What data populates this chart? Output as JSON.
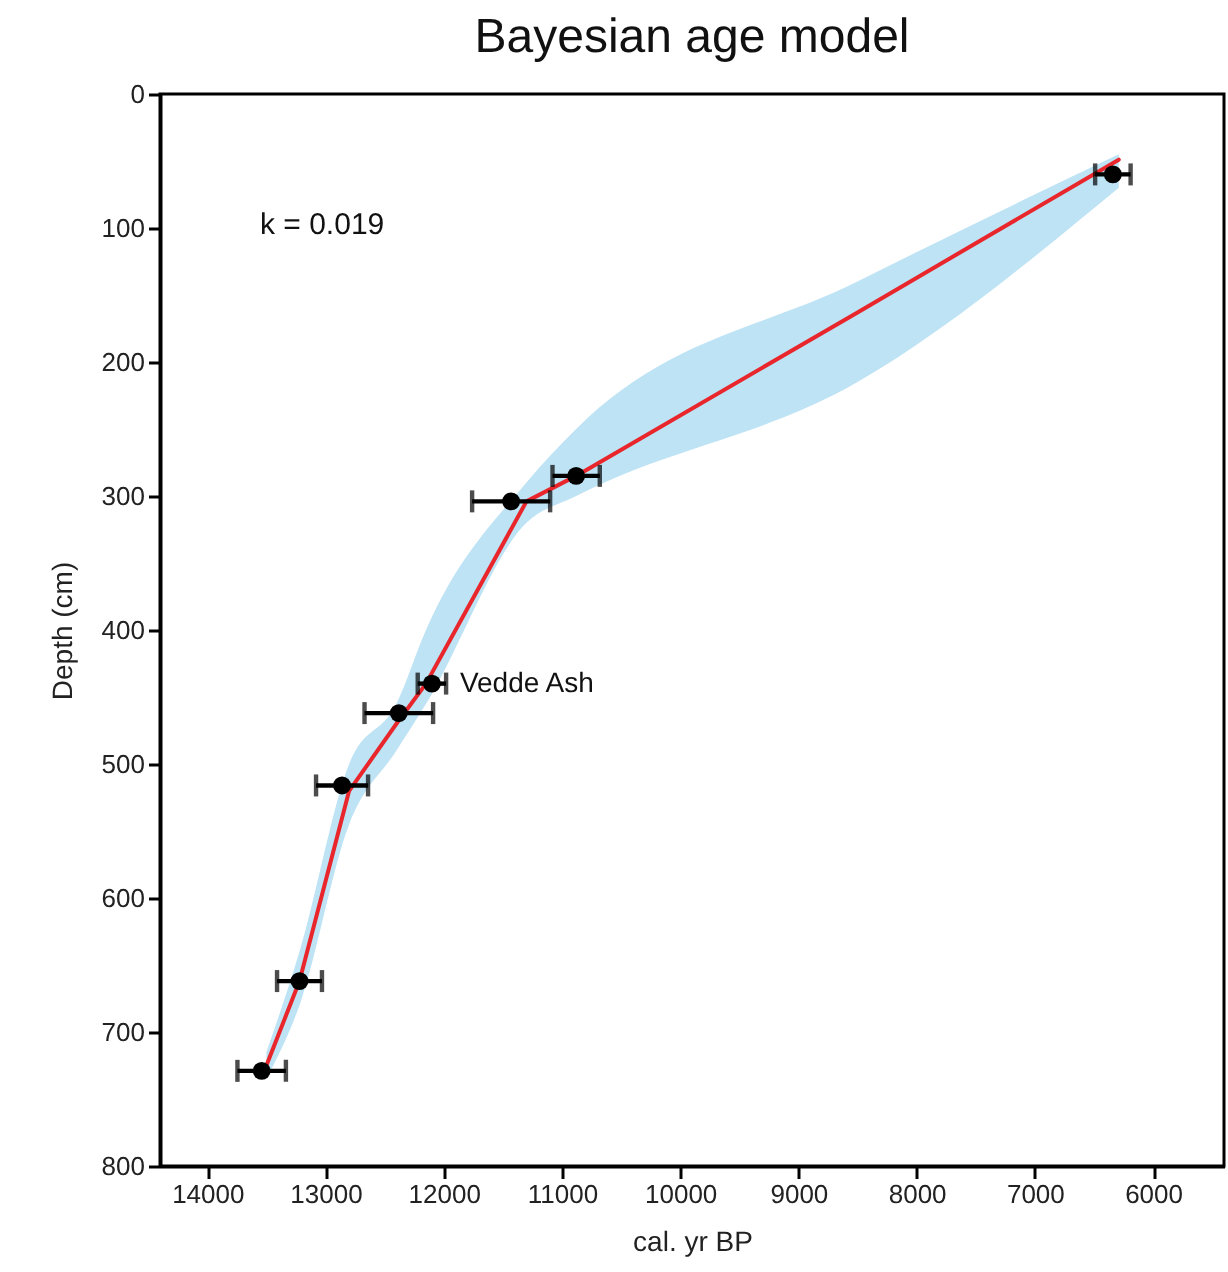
{
  "chart_data": {
    "type": "scatter",
    "title": "Bayesian age model",
    "xlabel": "cal. yr BP",
    "ylabel": "Depth (cm)",
    "xlim": [
      14400,
      5400
    ],
    "xticks": [
      14000,
      13000,
      12000,
      11000,
      10000,
      9000,
      8000,
      7000,
      6000
    ],
    "ylim": [
      800,
      0
    ],
    "yticks": [
      0,
      100,
      200,
      300,
      400,
      500,
      600,
      700,
      800
    ],
    "grid": false,
    "marker": "circle",
    "annotations": [
      "k = 0.019",
      {
        "text": "Vedde Ash",
        "x": 12100,
        "y": 440
      }
    ],
    "series": [
      {
        "type": "line",
        "marker": "none",
        "line_style": "solid",
        "color": "#e8262b",
        "x": [
          6290,
          8500,
          10880,
          11300,
          12150,
          12400,
          12800,
          13220,
          13500
        ],
        "values": [
          49,
          163,
          285,
          304,
          440,
          470,
          520,
          662,
          725
        ],
        "lower": [
          45,
          140,
          250,
          290,
          400,
          455,
          500,
          640,
          715
        ],
        "upper": [
          70,
          215,
          300,
          320,
          455,
          490,
          545,
          680,
          735
        ]
      },
      {
        "color": "#000000",
        "x": [
          6340,
          10880,
          11430,
          12100,
          12380,
          12860,
          13220,
          13540
        ],
        "values": [
          60,
          285,
          304,
          440,
          462,
          516,
          662,
          729
        ],
        "xerrors": [
          150,
          200,
          330,
          120,
          290,
          220,
          190,
          205
        ]
      }
    ]
  }
}
